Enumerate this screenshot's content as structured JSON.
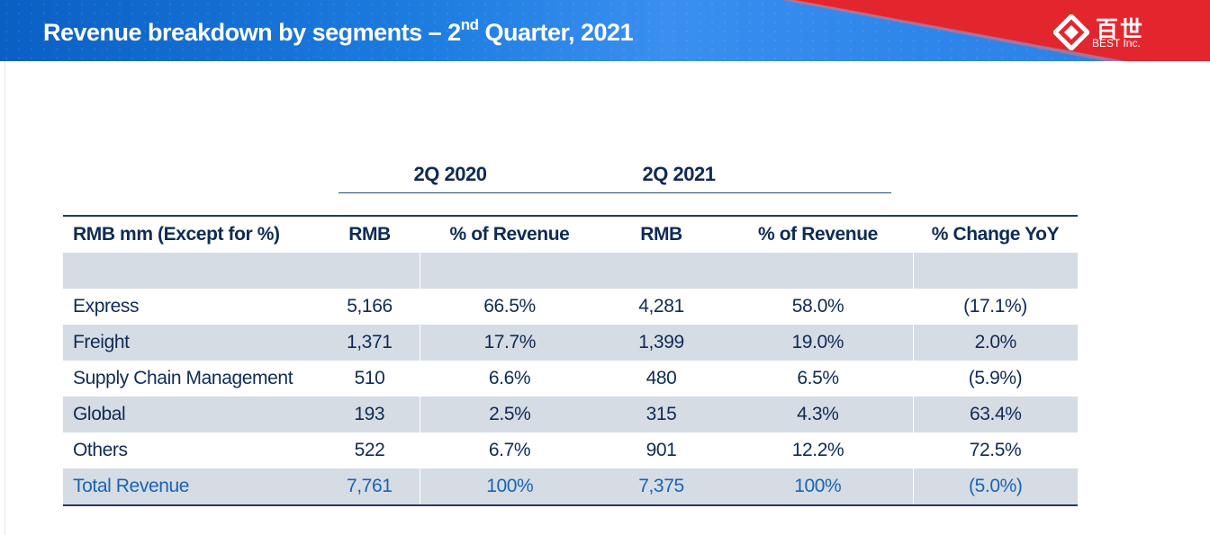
{
  "header": {
    "title_main": "Revenue breakdown by segments – 2",
    "title_sup": "nd",
    "title_end": " Quarter, 2021",
    "logo_cn": "百世",
    "logo_en": "BEST Inc."
  },
  "periods": [
    "2Q 2020",
    "2Q 2021"
  ],
  "table": {
    "headers": [
      "RMB mm (Except for %)",
      "RMB",
      "% of Revenue",
      "RMB",
      "% of Revenue",
      "% Change YoY"
    ],
    "rows": [
      [
        "Express",
        "5,166",
        "66.5%",
        "4,281",
        "58.0%",
        "(17.1%)"
      ],
      [
        "Freight",
        "1,371",
        "17.7%",
        "1,399",
        "19.0%",
        "2.0%"
      ],
      [
        "Supply Chain Management",
        "510",
        "6.6%",
        "480",
        "6.5%",
        "(5.9%)"
      ],
      [
        "Global",
        "193",
        "2.5%",
        "315",
        "4.3%",
        "63.4%"
      ],
      [
        "Others",
        "522",
        "6.7%",
        "901",
        "12.2%",
        "72.5%"
      ]
    ],
    "total": [
      "Total Revenue",
      "7,761",
      "100%",
      "7,375",
      "100%",
      "(5.0%)"
    ]
  },
  "colors": {
    "header_blue": "#1d7ce0",
    "accent_red": "#e3262e",
    "text_navy": "#0f2b55",
    "total_blue": "#1a63b4",
    "band_grey": "#d6dce3"
  }
}
